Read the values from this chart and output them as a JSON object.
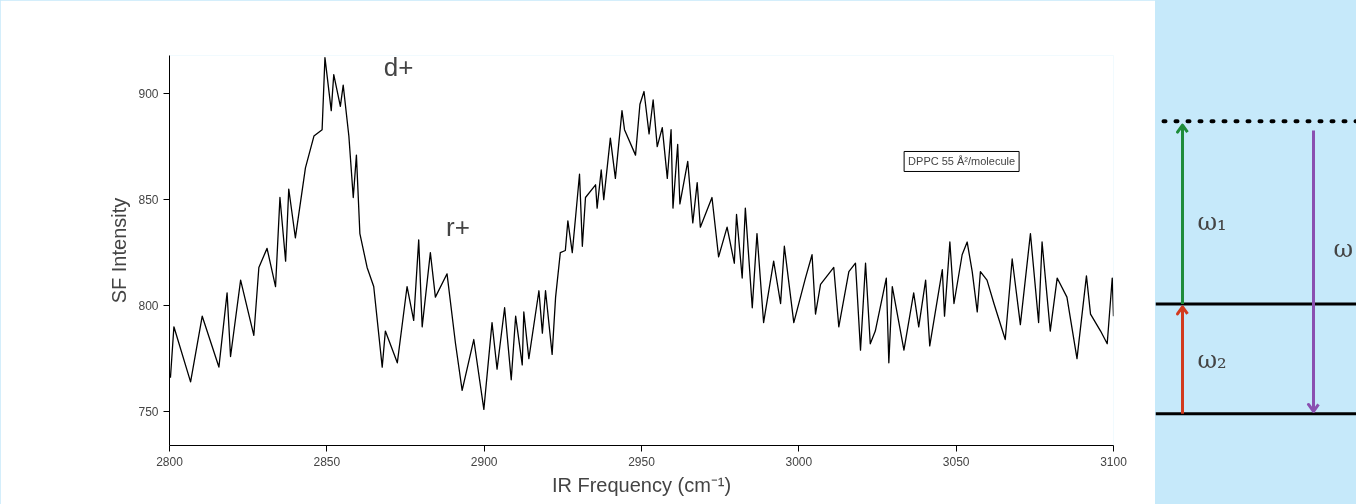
{
  "chart_data": [
    {
      "type": "line",
      "xlabel": "IR Frequency (cm⁻¹)",
      "ylabel": "SF Intensity",
      "xlim": [
        2800,
        3100
      ],
      "xticks": [
        2800,
        2850,
        2900,
        2950,
        3000,
        3050,
        3100
      ],
      "ylim": [
        734,
        918
      ],
      "yticks": [
        750,
        800,
        850,
        900
      ],
      "grid": false,
      "marker": "none",
      "line_style": "solid",
      "annotations": [
        "d+",
        "r+",
        "DPPC 55 Å²/molecule"
      ],
      "series": [
        {
          "color": "#000000",
          "x": [
            2800.3,
            2801.4,
            2806.7,
            2810.4,
            2815.7,
            2818.3,
            2819.4,
            2822.6,
            2826.8,
            2828.4,
            2831.0,
            2833.7,
            2835.1,
            2836.9,
            2837.9,
            2840.0,
            2843.2,
            2845.9,
            2848.5,
            2849.4,
            2851.4,
            2852.2,
            2854.3,
            2855.2,
            2857.0,
            2858.4,
            2859.4,
            2860.5,
            2862.8,
            2864.9,
            2867.6,
            2868.6,
            2872.4,
            2875.5,
            2877.6,
            2879.2,
            2880.3,
            2882.9,
            2884.5,
            2888.2,
            2890.9,
            2893.0,
            2896.7,
            2899.9,
            2902.5,
            2904.1,
            2906.5,
            2908.6,
            2910.0,
            2912.1,
            2912.6,
            2914.2,
            2917.4,
            2918.5,
            2919.5,
            2921.6,
            2922.7,
            2924.2,
            2925.8,
            2926.6,
            2928.0,
            2929.0,
            2930.3,
            2931.2,
            2932.2,
            2935.4,
            2935.9,
            2937.2,
            2938.0,
            2940.1,
            2941.7,
            2943.8,
            2944.6,
            2948.1,
            2949.5,
            2950.8,
            2952.4,
            2953.7,
            2955.0,
            2956.6,
            2958.2,
            2959.4,
            2960.0,
            2961.5,
            2962.2,
            2964.7,
            2966.3,
            2967.7,
            2968.7,
            2972.4,
            2974.5,
            2977.2,
            2979.5,
            2980.2,
            2982.0,
            2983.0,
            2985.2,
            2986.7,
            2988.8,
            2992.0,
            2994.2,
            2995.4,
            2998.4,
            3002.1,
            3004.2,
            3005.3,
            3006.9,
            3011.1,
            3012.7,
            3015.9,
            3018.0,
            3019.6,
            3021.2,
            3022.7,
            3024.3,
            3027.8,
            3028.6,
            3029.7,
            3033.4,
            3036.5,
            3038.1,
            3040.3,
            3041.6,
            3045.6,
            3046.3,
            3048.0,
            3049.3,
            3051.9,
            3053.5,
            3055.1,
            3056.7,
            3057.7,
            3059.8,
            3062.0,
            3065.6,
            3067.8,
            3070.4,
            3073.6,
            3076.2,
            3077.3,
            3079.9,
            3082.1,
            3085.2,
            3088.4,
            3091.4,
            3092.7,
            3095.9,
            3098.0,
            3099.6,
            3100.0
          ],
          "values": [
            766,
            790,
            764,
            795,
            771,
            806,
            776,
            812,
            786,
            818,
            827,
            809,
            851,
            821,
            855,
            832,
            865,
            880,
            883,
            917,
            892,
            909,
            894,
            904,
            880,
            851,
            871,
            834,
            818,
            809,
            771,
            788,
            773,
            809,
            793,
            831,
            790,
            825,
            804,
            815,
            782,
            760,
            784,
            751,
            792,
            770,
            799,
            765,
            795,
            772,
            797,
            775,
            807,
            787,
            807,
            777,
            804,
            825,
            826,
            840,
            825,
            841,
            862,
            828,
            851,
            857,
            846,
            864,
            850,
            879,
            860,
            892,
            883,
            871,
            895,
            901,
            881,
            897,
            875,
            884,
            860,
            883,
            846,
            876,
            848,
            868,
            839,
            858,
            837,
            851,
            823,
            837,
            820,
            843,
            813,
            846,
            799,
            834,
            792,
            821,
            801,
            828,
            792,
            813,
            824,
            796,
            810,
            818,
            790,
            816,
            820,
            779,
            820,
            782,
            788,
            813,
            773,
            809,
            779,
            806,
            790,
            812,
            781,
            817,
            795,
            830,
            801,
            824,
            830,
            816,
            797,
            816,
            812,
            801,
            784,
            822,
            791,
            834,
            792,
            830,
            788,
            813,
            804,
            775,
            814,
            796,
            788,
            782,
            813,
            795
          ]
        }
      ]
    },
    {
      "type": "other",
      "annotations": [
        "ω₁",
        "ω₂",
        "ω"
      ]
    }
  ]
}
